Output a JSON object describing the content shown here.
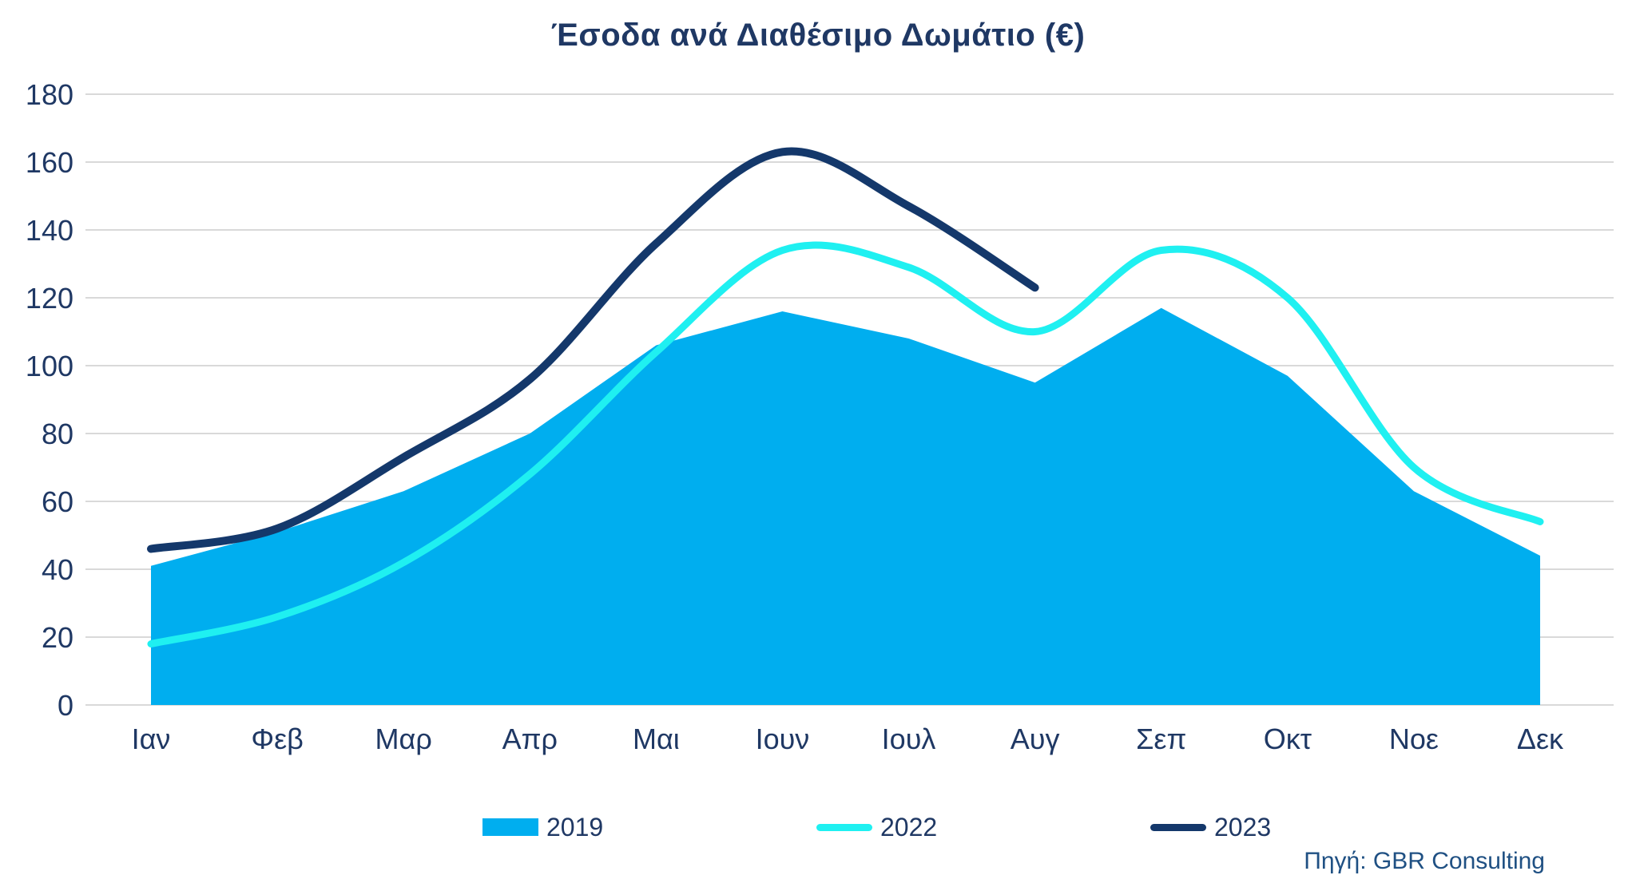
{
  "title": "Έσοδα ανά Διαθέσιμο Δωμάτιο (€)",
  "source": "Πηγή: GBR Consulting",
  "colors": {
    "area_2019": "#00AEEF",
    "line_2022": "#1FF0F1",
    "line_2023": "#14386B",
    "text": "#1F3864",
    "grid": "#D9D9D9",
    "background": "#FFFFFF"
  },
  "chart_data": {
    "type": "area",
    "title": "Έσοδα ανά Διαθέσιμο Δωμάτιο (€)",
    "categories": [
      "Ιαν",
      "Φεβ",
      "Μαρ",
      "Απρ",
      "Μαι",
      "Ιουν",
      "Ιουλ",
      "Αυγ",
      "Σεπ",
      "Οκτ",
      "Νοε",
      "Δεκ"
    ],
    "series": [
      {
        "name": "2019",
        "type": "area",
        "color": "#00AEEF",
        "values": [
          41,
          51,
          63,
          80,
          106,
          116,
          108,
          95,
          117,
          97,
          63,
          44
        ]
      },
      {
        "name": "2022",
        "type": "line",
        "smooth": true,
        "color": "#1FF0F1",
        "values": [
          18,
          26,
          42,
          68,
          104,
          134,
          129,
          110,
          134,
          120,
          70,
          54
        ]
      },
      {
        "name": "2023",
        "type": "line",
        "smooth": true,
        "color": "#14386B",
        "values": [
          46,
          52,
          73,
          96,
          136,
          163,
          147,
          123
        ]
      }
    ],
    "xlabel": "",
    "ylabel": "",
    "ylim": [
      0,
      180
    ],
    "y_ticks": [
      0,
      20,
      40,
      60,
      80,
      100,
      120,
      140,
      160,
      180
    ],
    "grid": true,
    "legend_position": "bottom"
  },
  "legend": {
    "items": [
      {
        "label": "2019",
        "swatch": "rect"
      },
      {
        "label": "2022",
        "swatch": "line"
      },
      {
        "label": "2023",
        "swatch": "line"
      }
    ]
  }
}
